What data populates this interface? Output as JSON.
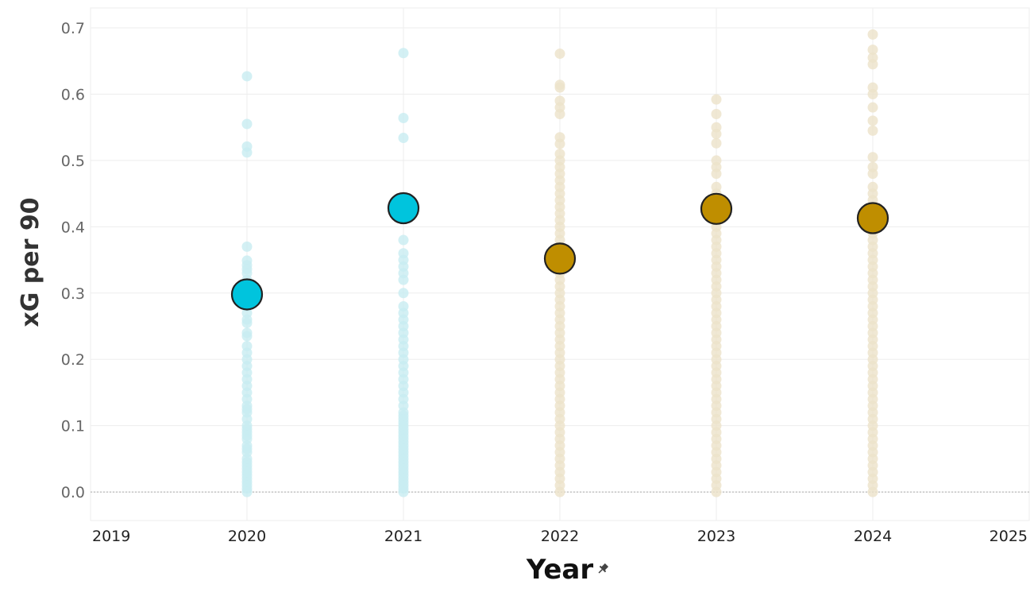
{
  "chart_data": {
    "type": "scatter",
    "title": "",
    "xlabel": "Year",
    "ylabel": "xG per 90",
    "xlim": [
      2019,
      2025
    ],
    "ylim": [
      -0.043,
      0.73
    ],
    "x_ticks": [
      2019,
      2020,
      2021,
      2022,
      2023,
      2024,
      2025
    ],
    "y_ticks": [
      0.0,
      0.1,
      0.2,
      0.3,
      0.4,
      0.5,
      0.6,
      0.7
    ],
    "y_tick_labels": [
      "0.0",
      "0.1",
      "0.2",
      "0.3",
      "0.4",
      "0.5",
      "0.6",
      "0.7"
    ],
    "grid": true,
    "legend": "none",
    "colors": {
      "cyan": "#00c4dd",
      "gold": "#bf8e00",
      "cyan_faint": "#c8ecf1",
      "gold_faint": "#ece2c9"
    },
    "series": [
      {
        "year": 2020,
        "color": "cyan",
        "mean": 0.298,
        "points": [
          0.627,
          0.555,
          0.521,
          0.512,
          0.37,
          0.349,
          0.342,
          0.336,
          0.33,
          0.32,
          0.31,
          0.3,
          0.29,
          0.28,
          0.27,
          0.26,
          0.255,
          0.24,
          0.235,
          0.22,
          0.21,
          0.2,
          0.19,
          0.18,
          0.17,
          0.16,
          0.15,
          0.14,
          0.13,
          0.125,
          0.12,
          0.11,
          0.1,
          0.095,
          0.09,
          0.085,
          0.08,
          0.07,
          0.065,
          0.06,
          0.05,
          0.045,
          0.04,
          0.035,
          0.03,
          0.025,
          0.02,
          0.015,
          0.01,
          0.005,
          0.0
        ]
      },
      {
        "year": 2021,
        "color": "cyan",
        "mean": 0.428,
        "points": [
          0.662,
          0.564,
          0.534,
          0.38,
          0.36,
          0.35,
          0.34,
          0.33,
          0.32,
          0.3,
          0.28,
          0.27,
          0.26,
          0.25,
          0.24,
          0.23,
          0.22,
          0.21,
          0.2,
          0.19,
          0.18,
          0.17,
          0.16,
          0.15,
          0.14,
          0.13,
          0.12,
          0.115,
          0.11,
          0.105,
          0.1,
          0.095,
          0.09,
          0.085,
          0.08,
          0.075,
          0.07,
          0.065,
          0.06,
          0.055,
          0.05,
          0.045,
          0.04,
          0.035,
          0.03,
          0.025,
          0.02,
          0.015,
          0.01,
          0.005,
          0.0
        ]
      },
      {
        "year": 2022,
        "color": "gold",
        "mean": 0.352,
        "points": [
          0.661,
          0.614,
          0.61,
          0.59,
          0.58,
          0.57,
          0.535,
          0.525,
          0.51,
          0.5,
          0.49,
          0.48,
          0.47,
          0.46,
          0.45,
          0.44,
          0.43,
          0.42,
          0.41,
          0.4,
          0.39,
          0.38,
          0.37,
          0.36,
          0.35,
          0.34,
          0.33,
          0.32,
          0.31,
          0.3,
          0.29,
          0.28,
          0.27,
          0.26,
          0.25,
          0.24,
          0.23,
          0.22,
          0.21,
          0.2,
          0.19,
          0.18,
          0.17,
          0.16,
          0.15,
          0.14,
          0.13,
          0.12,
          0.11,
          0.1,
          0.09,
          0.08,
          0.07,
          0.06,
          0.05,
          0.04,
          0.03,
          0.02,
          0.01,
          0.0
        ]
      },
      {
        "year": 2023,
        "color": "gold",
        "mean": 0.427,
        "points": [
          0.592,
          0.57,
          0.55,
          0.54,
          0.526,
          0.5,
          0.49,
          0.48,
          0.46,
          0.45,
          0.44,
          0.43,
          0.42,
          0.41,
          0.4,
          0.39,
          0.38,
          0.37,
          0.36,
          0.35,
          0.34,
          0.33,
          0.32,
          0.31,
          0.3,
          0.29,
          0.28,
          0.27,
          0.26,
          0.25,
          0.24,
          0.23,
          0.22,
          0.21,
          0.2,
          0.19,
          0.18,
          0.17,
          0.16,
          0.15,
          0.14,
          0.13,
          0.12,
          0.11,
          0.1,
          0.09,
          0.08,
          0.07,
          0.06,
          0.05,
          0.04,
          0.03,
          0.02,
          0.01,
          0.0
        ]
      },
      {
        "year": 2024,
        "color": "gold",
        "mean": 0.413,
        "points": [
          0.69,
          0.667,
          0.655,
          0.645,
          0.61,
          0.6,
          0.58,
          0.56,
          0.545,
          0.505,
          0.49,
          0.48,
          0.46,
          0.45,
          0.44,
          0.42,
          0.41,
          0.4,
          0.39,
          0.38,
          0.37,
          0.36,
          0.35,
          0.34,
          0.33,
          0.32,
          0.31,
          0.3,
          0.29,
          0.28,
          0.27,
          0.26,
          0.25,
          0.24,
          0.23,
          0.22,
          0.21,
          0.2,
          0.19,
          0.18,
          0.17,
          0.16,
          0.15,
          0.14,
          0.13,
          0.12,
          0.11,
          0.1,
          0.09,
          0.08,
          0.07,
          0.06,
          0.05,
          0.04,
          0.03,
          0.02,
          0.01,
          0.0
        ]
      }
    ]
  }
}
